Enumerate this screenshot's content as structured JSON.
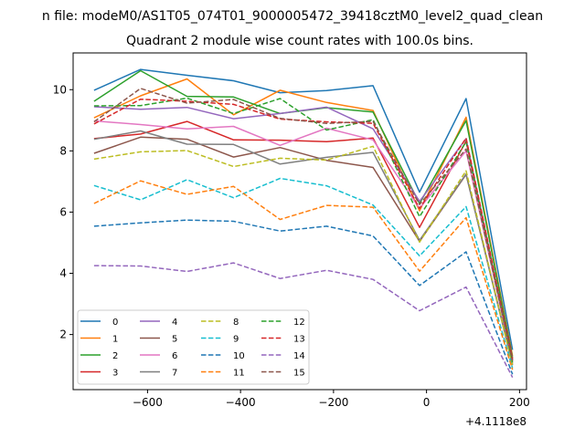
{
  "chart_data": {
    "type": "line",
    "suptitle": "n file: modeM0/AS1T05_074T01_9000005472_39418cztM0_level2_quad_clean",
    "title": "Quadrant 2 module wise count rates with 100.0s bins.",
    "xlabel": "",
    "ylabel": "",
    "x_offset_label": "+4.1118e8",
    "xlim": [
      -760,
      215
    ],
    "ylim": [
      0.2,
      11.2
    ],
    "xticks": [
      -600,
      -400,
      -200,
      0,
      200
    ],
    "xtick_labels": [
      "−600",
      "−400",
      "−200",
      "0",
      "200"
    ],
    "yticks": [
      2,
      4,
      6,
      8,
      10
    ],
    "ytick_labels": [
      "2",
      "4",
      "6",
      "8",
      "10"
    ],
    "grid": false,
    "legend": {
      "position": "lower-left",
      "columns": 4
    },
    "x": [
      -715,
      -615,
      -515,
      -415,
      -315,
      -215,
      -115,
      -15,
      85,
      185
    ],
    "series": [
      {
        "name": "0",
        "color": "#1f77b4",
        "dash": "solid",
        "values": [
          9.98,
          10.66,
          10.47,
          10.29,
          9.9,
          9.97,
          10.13,
          6.65,
          9.71,
          1.5
        ]
      },
      {
        "name": "1",
        "color": "#ff7f0e",
        "dash": "solid",
        "values": [
          9.08,
          9.8,
          10.35,
          9.18,
          9.98,
          9.58,
          9.32,
          6.04,
          9.1,
          1.3
        ]
      },
      {
        "name": "2",
        "color": "#2ca02c",
        "dash": "solid",
        "values": [
          9.62,
          10.62,
          9.78,
          9.76,
          9.22,
          9.41,
          9.27,
          6.28,
          8.99,
          1.25
        ]
      },
      {
        "name": "3",
        "color": "#d62728",
        "dash": "solid",
        "values": [
          8.4,
          8.55,
          8.96,
          8.36,
          8.35,
          8.3,
          8.42,
          5.5,
          8.32,
          1.2
        ]
      },
      {
        "name": "4",
        "color": "#9467bd",
        "dash": "solid",
        "values": [
          9.44,
          9.36,
          9.42,
          9.05,
          9.22,
          9.43,
          8.72,
          6.35,
          8.4,
          1.15
        ]
      },
      {
        "name": "5",
        "color": "#8c564b",
        "dash": "solid",
        "values": [
          7.92,
          8.45,
          8.38,
          7.8,
          8.11,
          7.69,
          7.46,
          5.04,
          7.23,
          1.05
        ]
      },
      {
        "name": "6",
        "color": "#e377c2",
        "dash": "solid",
        "values": [
          8.98,
          8.86,
          8.72,
          8.8,
          8.18,
          8.74,
          8.36,
          6.12,
          8.0,
          1.1
        ]
      },
      {
        "name": "7",
        "color": "#7f7f7f",
        "dash": "solid",
        "values": [
          8.38,
          8.65,
          8.22,
          8.21,
          7.57,
          7.79,
          7.95,
          5.08,
          7.24,
          1.0
        ]
      },
      {
        "name": "8",
        "color": "#bcbd22",
        "dash": "dashed",
        "values": [
          7.73,
          7.97,
          8.01,
          7.49,
          7.76,
          7.7,
          8.15,
          5.02,
          7.35,
          1.0
        ]
      },
      {
        "name": "9",
        "color": "#17becf",
        "dash": "dashed",
        "values": [
          6.87,
          6.4,
          7.06,
          6.47,
          7.1,
          6.86,
          6.23,
          4.57,
          6.18,
          0.9
        ]
      },
      {
        "name": "10",
        "color": "#1f77b4",
        "dash": "dashed",
        "values": [
          5.54,
          5.65,
          5.74,
          5.7,
          5.38,
          5.54,
          5.22,
          3.6,
          4.7,
          0.7
        ]
      },
      {
        "name": "11",
        "color": "#ff7f0e",
        "dash": "dashed",
        "values": [
          6.28,
          7.02,
          6.58,
          6.84,
          5.76,
          6.22,
          6.16,
          4.07,
          5.82,
          0.85
        ]
      },
      {
        "name": "12",
        "color": "#2ca02c",
        "dash": "dashed",
        "values": [
          9.47,
          9.48,
          9.72,
          9.22,
          9.71,
          8.68,
          9.02,
          5.85,
          8.3,
          1.1
        ]
      },
      {
        "name": "13",
        "color": "#d62728",
        "dash": "dashed",
        "values": [
          8.88,
          9.69,
          9.62,
          9.52,
          9.04,
          8.95,
          8.9,
          6.12,
          8.42,
          1.2
        ]
      },
      {
        "name": "14",
        "color": "#9467bd",
        "dash": "dashed",
        "values": [
          4.25,
          4.24,
          4.06,
          4.34,
          3.83,
          4.1,
          3.8,
          2.78,
          3.55,
          0.6
        ]
      },
      {
        "name": "15",
        "color": "#8c564b",
        "dash": "dashed",
        "values": [
          8.95,
          10.04,
          9.56,
          9.68,
          9.06,
          8.9,
          8.96,
          6.25,
          8.06,
          1.15
        ]
      }
    ]
  }
}
